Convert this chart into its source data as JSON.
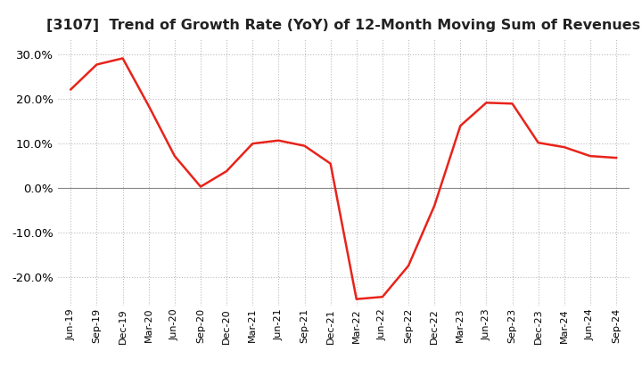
{
  "title": "[3107]  Trend of Growth Rate (YoY) of 12-Month Moving Sum of Revenues",
  "title_fontsize": 11.5,
  "line_color": "#e8231a",
  "background_color": "#ffffff",
  "grid_color": "#bbbbbb",
  "x_labels": [
    "Jun-19",
    "Sep-19",
    "Dec-19",
    "Mar-20",
    "Jun-20",
    "Sep-20",
    "Dec-20",
    "Mar-21",
    "Jun-21",
    "Sep-21",
    "Dec-21",
    "Mar-22",
    "Jun-22",
    "Sep-22",
    "Dec-22",
    "Mar-23",
    "Jun-23",
    "Sep-23",
    "Dec-23",
    "Mar-24",
    "Jun-24",
    "Sep-24"
  ],
  "y_values": [
    0.222,
    0.278,
    0.292,
    0.185,
    0.072,
    0.003,
    0.038,
    0.1,
    0.107,
    0.095,
    0.055,
    -0.25,
    -0.245,
    -0.175,
    -0.04,
    0.14,
    0.192,
    0.19,
    0.102,
    0.092,
    0.072,
    0.068
  ],
  "ylim": [
    -0.265,
    0.335
  ],
  "yticks": [
    -0.2,
    -0.1,
    0.0,
    0.1,
    0.2,
    0.3
  ],
  "tick_label_fontsize": 9.5,
  "x_tick_fontsize": 8.0
}
